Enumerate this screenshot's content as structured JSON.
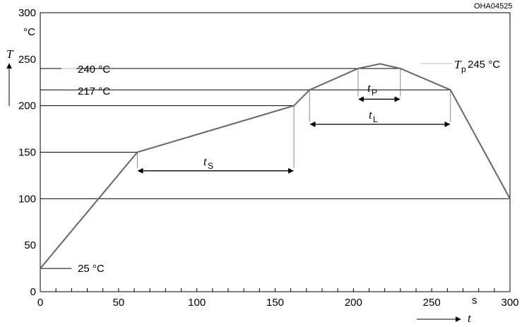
{
  "figure_code": "OHA04525",
  "chart_data": {
    "type": "line",
    "x": [
      0,
      62,
      162,
      172,
      203,
      217,
      230,
      262,
      300
    ],
    "y": [
      25,
      150,
      200,
      217,
      240,
      245,
      240,
      217,
      100
    ],
    "xlim": [
      0,
      300
    ],
    "ylim": [
      0,
      300
    ],
    "x_ticks": [
      0,
      50,
      100,
      150,
      200,
      250,
      300
    ],
    "y_ticks": [
      0,
      50,
      100,
      150,
      200,
      250,
      300
    ],
    "x_minor_step": 10,
    "grid": false,
    "x_unit": "s",
    "y_unit": "°C",
    "x_symbol": "t",
    "y_symbol": "T",
    "reference_lines": [
      {
        "y": 240,
        "label": "240 °C",
        "x_end": 230
      },
      {
        "y": 217,
        "label": "217 °C",
        "x_end": 262
      },
      {
        "y": 200,
        "x_end": 162
      },
      {
        "y": 150,
        "x_end": 62
      },
      {
        "y": 100,
        "x_end": 300
      },
      {
        "y": 25,
        "label": "25 °C",
        "x_end": 20
      }
    ],
    "intervals": [
      {
        "symbol": "t",
        "subscript": "S",
        "from": 62,
        "to": 162,
        "y": 130
      },
      {
        "symbol": "t",
        "subscript": "P",
        "from": 203,
        "to": 230,
        "y": 207
      },
      {
        "symbol": "t",
        "subscript": "L",
        "from": 172,
        "to": 262,
        "y": 180
      }
    ],
    "peak_label": {
      "symbol": "T",
      "subscript": "p",
      "text": "245 °C"
    }
  }
}
